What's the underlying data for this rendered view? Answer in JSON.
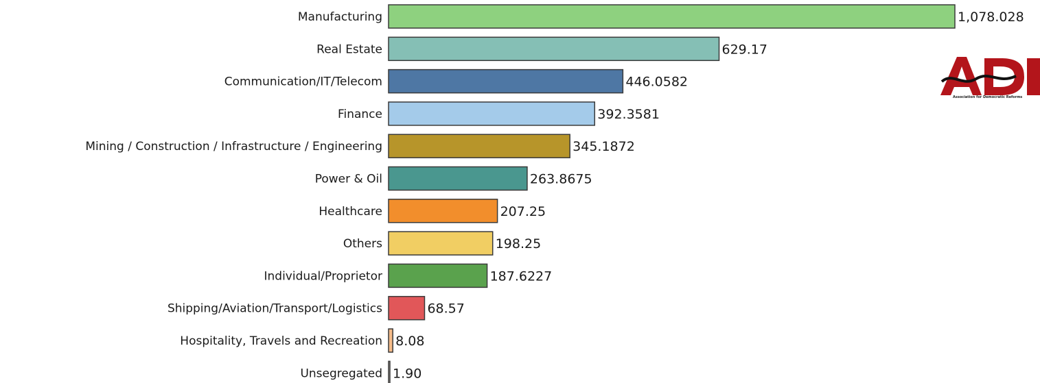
{
  "chart_data": {
    "type": "bar",
    "orientation": "horizontal",
    "title": "",
    "xlabel": "",
    "ylabel": "",
    "categories": [
      "Manufacturing",
      "Real Estate",
      "Communication/IT/Telecom",
      "Finance",
      "Mining / Construction / Infrastructure / Engineering",
      "Power & Oil",
      "Healthcare",
      "Others",
      "Individual/Proprietor",
      "Shipping/Aviation/Transport/Logistics",
      "Hospitality, Travels and Recreation",
      "Unsegregated"
    ],
    "values": [
      1078.028,
      629.17,
      446.0582,
      392.3581,
      345.1872,
      263.8675,
      207.25,
      198.25,
      187.6227,
      68.57,
      8.08,
      1.9
    ],
    "value_labels": [
      "1,078.028",
      "629.17",
      "446.0582",
      "392.3581",
      "345.1872",
      "263.8675",
      "207.25",
      "198.25",
      "187.6227",
      "68.57",
      "8.08",
      "1.90"
    ],
    "colors": [
      "#8ed17f",
      "#85bfb5",
      "#4e77a4",
      "#a4cbea",
      "#b7952a",
      "#4a978f",
      "#f28e2c",
      "#f1ce63",
      "#5aa24d",
      "#e15759",
      "#f6bc8a",
      "#bab0ac"
    ],
    "grid": false,
    "legend": "none"
  },
  "logo": {
    "text": "ADR",
    "tagline": "Association for Democratic Reforms",
    "color": "#b3151b"
  }
}
